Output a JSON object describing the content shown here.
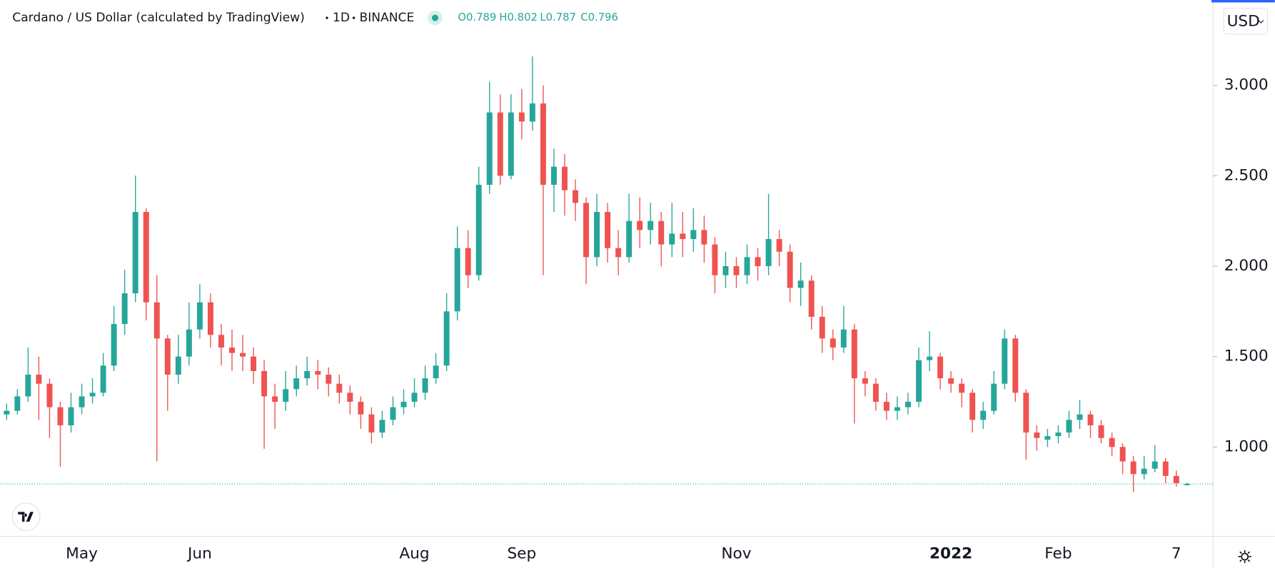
{
  "header": {
    "symbol": "Cardano / US Dollar (calculated by TradingView)",
    "interval": "1D",
    "exchange": "BINANCE",
    "ohlc": [
      "O0.789",
      "H0.802",
      "L0.787",
      "C0.796"
    ],
    "currency": "USD"
  },
  "chart_data": {
    "type": "candlestick",
    "up_color": "#26a69a",
    "down_color": "#ef5350",
    "ylim": [
      0.506,
      3.472
    ],
    "yticks": [
      {
        "value": 1,
        "label": "1.000"
      },
      {
        "value": 1.5,
        "label": "1.500"
      },
      {
        "value": 2,
        "label": "2.000"
      },
      {
        "value": 2.5,
        "label": "2.500"
      },
      {
        "value": 3,
        "label": "3.000"
      }
    ],
    "categories": [
      null,
      null,
      null,
      null,
      null,
      null,
      null,
      "May",
      null,
      null,
      null,
      null,
      null,
      null,
      null,
      null,
      null,
      null,
      "Jun",
      null,
      null,
      null,
      null,
      null,
      null,
      null,
      null,
      null,
      null,
      null,
      null,
      null,
      null,
      null,
      null,
      null,
      null,
      null,
      "Aug",
      null,
      null,
      null,
      null,
      null,
      null,
      null,
      null,
      null,
      "Sep",
      null,
      null,
      null,
      null,
      null,
      null,
      null,
      null,
      null,
      null,
      null,
      null,
      null,
      null,
      null,
      null,
      null,
      null,
      null,
      "Nov",
      null,
      null,
      null,
      null,
      null,
      null,
      null,
      null,
      null,
      null,
      null,
      null,
      null,
      null,
      null,
      null,
      null,
      null,
      null,
      "2022",
      null,
      null,
      null,
      null,
      null,
      null,
      null,
      null,
      null,
      "Feb",
      null,
      null,
      null,
      null,
      null,
      null,
      null,
      null,
      null,
      null,
      "7",
      null
    ],
    "candles": [
      [
        1.18,
        1.24,
        1.15,
        1.2
      ],
      [
        1.2,
        1.32,
        1.18,
        1.28
      ],
      [
        1.28,
        1.55,
        1.25,
        1.4
      ],
      [
        1.4,
        1.5,
        1.15,
        1.35
      ],
      [
        1.35,
        1.38,
        1.05,
        1.22
      ],
      [
        1.22,
        1.25,
        0.89,
        1.12
      ],
      [
        1.12,
        1.3,
        1.08,
        1.22
      ],
      [
        1.22,
        1.35,
        1.18,
        1.28
      ],
      [
        1.28,
        1.38,
        1.24,
        1.3
      ],
      [
        1.3,
        1.52,
        1.28,
        1.45
      ],
      [
        1.45,
        1.78,
        1.42,
        1.68
      ],
      [
        1.68,
        1.98,
        1.62,
        1.85
      ],
      [
        1.85,
        2.5,
        1.8,
        2.3
      ],
      [
        2.3,
        2.32,
        1.7,
        1.8
      ],
      [
        1.8,
        1.95,
        0.92,
        1.6
      ],
      [
        1.6,
        1.62,
        1.2,
        1.4
      ],
      [
        1.4,
        1.62,
        1.35,
        1.5
      ],
      [
        1.5,
        1.8,
        1.45,
        1.65
      ],
      [
        1.65,
        1.9,
        1.6,
        1.8
      ],
      [
        1.8,
        1.85,
        1.55,
        1.62
      ],
      [
        1.62,
        1.68,
        1.45,
        1.55
      ],
      [
        1.55,
        1.65,
        1.42,
        1.52
      ],
      [
        1.52,
        1.62,
        1.42,
        1.5
      ],
      [
        1.5,
        1.55,
        1.35,
        1.42
      ],
      [
        1.42,
        1.48,
        0.99,
        1.28
      ],
      [
        1.28,
        1.35,
        1.1,
        1.25
      ],
      [
        1.25,
        1.42,
        1.2,
        1.32
      ],
      [
        1.32,
        1.45,
        1.28,
        1.38
      ],
      [
        1.38,
        1.5,
        1.34,
        1.42
      ],
      [
        1.42,
        1.48,
        1.32,
        1.4
      ],
      [
        1.4,
        1.44,
        1.28,
        1.35
      ],
      [
        1.35,
        1.4,
        1.24,
        1.3
      ],
      [
        1.3,
        1.34,
        1.18,
        1.25
      ],
      [
        1.25,
        1.28,
        1.1,
        1.18
      ],
      [
        1.18,
        1.22,
        1.02,
        1.08
      ],
      [
        1.08,
        1.2,
        1.05,
        1.15
      ],
      [
        1.15,
        1.28,
        1.12,
        1.22
      ],
      [
        1.22,
        1.32,
        1.18,
        1.25
      ],
      [
        1.25,
        1.38,
        1.22,
        1.3
      ],
      [
        1.3,
        1.45,
        1.26,
        1.38
      ],
      [
        1.38,
        1.52,
        1.35,
        1.45
      ],
      [
        1.45,
        1.85,
        1.42,
        1.75
      ],
      [
        1.75,
        2.22,
        1.7,
        2.1
      ],
      [
        2.1,
        2.2,
        1.88,
        1.95
      ],
      [
        1.95,
        2.55,
        1.92,
        2.45
      ],
      [
        2.45,
        3.02,
        2.4,
        2.85
      ],
      [
        2.85,
        2.95,
        2.45,
        2.5
      ],
      [
        2.5,
        2.95,
        2.48,
        2.85
      ],
      [
        2.85,
        2.98,
        2.7,
        2.8
      ],
      [
        2.8,
        3.16,
        2.75,
        2.9
      ],
      [
        2.9,
        3.0,
        1.95,
        2.45
      ],
      [
        2.45,
        2.65,
        2.3,
        2.55
      ],
      [
        2.55,
        2.62,
        2.28,
        2.42
      ],
      [
        2.42,
        2.48,
        2.25,
        2.35
      ],
      [
        2.35,
        2.38,
        1.9,
        2.05
      ],
      [
        2.05,
        2.4,
        2.0,
        2.3
      ],
      [
        2.3,
        2.35,
        2.02,
        2.1
      ],
      [
        2.1,
        2.2,
        1.95,
        2.05
      ],
      [
        2.05,
        2.4,
        2.02,
        2.25
      ],
      [
        2.25,
        2.38,
        2.1,
        2.2
      ],
      [
        2.2,
        2.35,
        2.12,
        2.25
      ],
      [
        2.25,
        2.3,
        2.0,
        2.12
      ],
      [
        2.12,
        2.35,
        2.05,
        2.18
      ],
      [
        2.18,
        2.3,
        2.05,
        2.15
      ],
      [
        2.15,
        2.32,
        2.08,
        2.2
      ],
      [
        2.2,
        2.28,
        2.02,
        2.12
      ],
      [
        2.12,
        2.16,
        1.85,
        1.95
      ],
      [
        1.95,
        2.08,
        1.88,
        2.0
      ],
      [
        2.0,
        2.05,
        1.88,
        1.95
      ],
      [
        1.95,
        2.12,
        1.9,
        2.05
      ],
      [
        2.05,
        2.1,
        1.92,
        2.0
      ],
      [
        2.0,
        2.4,
        1.95,
        2.15
      ],
      [
        2.15,
        2.2,
        2.0,
        2.08
      ],
      [
        2.08,
        2.12,
        1.8,
        1.88
      ],
      [
        1.88,
        2.02,
        1.78,
        1.92
      ],
      [
        1.92,
        1.95,
        1.65,
        1.72
      ],
      [
        1.72,
        1.78,
        1.52,
        1.6
      ],
      [
        1.6,
        1.65,
        1.48,
        1.55
      ],
      [
        1.55,
        1.78,
        1.52,
        1.65
      ],
      [
        1.65,
        1.68,
        1.13,
        1.38
      ],
      [
        1.38,
        1.42,
        1.28,
        1.35
      ],
      [
        1.35,
        1.38,
        1.2,
        1.25
      ],
      [
        1.25,
        1.3,
        1.15,
        1.2
      ],
      [
        1.2,
        1.28,
        1.15,
        1.22
      ],
      [
        1.22,
        1.3,
        1.18,
        1.25
      ],
      [
        1.25,
        1.55,
        1.22,
        1.48
      ],
      [
        1.48,
        1.64,
        1.42,
        1.5
      ],
      [
        1.5,
        1.52,
        1.32,
        1.38
      ],
      [
        1.38,
        1.42,
        1.3,
        1.35
      ],
      [
        1.35,
        1.38,
        1.22,
        1.3
      ],
      [
        1.3,
        1.32,
        1.08,
        1.15
      ],
      [
        1.15,
        1.25,
        1.1,
        1.2
      ],
      [
        1.2,
        1.42,
        1.18,
        1.35
      ],
      [
        1.35,
        1.65,
        1.32,
        1.6
      ],
      [
        1.6,
        1.62,
        1.25,
        1.3
      ],
      [
        1.3,
        1.32,
        0.93,
        1.08
      ],
      [
        1.08,
        1.12,
        0.98,
        1.05
      ],
      [
        1.04,
        1.1,
        1.0,
        1.06
      ],
      [
        1.06,
        1.12,
        1.02,
        1.08
      ],
      [
        1.08,
        1.2,
        1.05,
        1.15
      ],
      [
        1.15,
        1.26,
        1.1,
        1.18
      ],
      [
        1.18,
        1.2,
        1.05,
        1.12
      ],
      [
        1.12,
        1.15,
        1.02,
        1.05
      ],
      [
        1.05,
        1.08,
        0.95,
        1.0
      ],
      [
        1.0,
        1.02,
        0.85,
        0.92
      ],
      [
        0.92,
        0.95,
        0.75,
        0.85
      ],
      [
        0.85,
        0.95,
        0.82,
        0.88
      ],
      [
        0.88,
        1.01,
        0.86,
        0.92
      ],
      [
        0.92,
        0.94,
        0.8,
        0.84
      ],
      [
        0.84,
        0.87,
        0.78,
        0.8
      ],
      [
        0.789,
        0.802,
        0.787,
        0.796
      ]
    ]
  }
}
